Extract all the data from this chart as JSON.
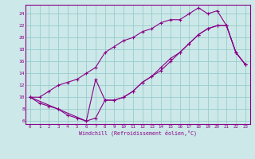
{
  "xlabel": "Windchill (Refroidissement éolien,°C)",
  "xlim": [
    -0.5,
    23.5
  ],
  "ylim": [
    5.5,
    25.5
  ],
  "xticks": [
    0,
    1,
    2,
    3,
    4,
    5,
    6,
    7,
    8,
    9,
    10,
    11,
    12,
    13,
    14,
    15,
    16,
    17,
    18,
    19,
    20,
    21,
    22,
    23
  ],
  "yticks": [
    6,
    8,
    10,
    12,
    14,
    16,
    18,
    20,
    22,
    24
  ],
  "line_color": "#880088",
  "bg_color": "#cce8e8",
  "grid_color": "#99cccc",
  "line1_x": [
    0,
    1,
    2,
    3,
    4,
    5,
    6,
    7,
    8,
    9,
    10,
    11,
    12,
    13,
    14,
    15,
    16,
    17,
    18,
    19,
    20,
    21,
    22,
    23
  ],
  "line1_y": [
    10,
    9,
    8.5,
    8,
    7,
    6.5,
    6,
    6.5,
    9.5,
    9.5,
    10,
    11,
    12.5,
    13.5,
    15,
    16.5,
    17.5,
    19,
    20.5,
    21.5,
    22,
    22,
    17.5,
    15.5
  ],
  "line2_x": [
    0,
    1,
    2,
    3,
    4,
    5,
    6,
    7,
    8,
    9,
    10,
    11,
    12,
    13,
    14,
    15,
    16,
    17,
    18,
    19,
    20,
    21,
    22,
    23
  ],
  "line2_y": [
    10,
    10,
    11,
    12,
    12.5,
    13,
    14,
    15,
    17.5,
    18.5,
    19.5,
    20,
    21,
    21.5,
    22.5,
    23,
    23,
    24,
    25,
    24,
    24.5,
    22,
    17.5,
    15.5
  ],
  "line3_x": [
    0,
    3,
    6,
    7,
    8,
    9,
    10,
    11,
    12,
    13,
    14,
    15,
    16,
    17,
    18,
    19,
    20,
    21,
    22,
    23
  ],
  "line3_y": [
    10,
    8,
    6,
    13,
    9.5,
    9.5,
    10,
    11,
    12.5,
    13.5,
    14.5,
    16,
    17.5,
    19,
    20.5,
    21.5,
    22,
    22,
    17.5,
    15.5
  ]
}
